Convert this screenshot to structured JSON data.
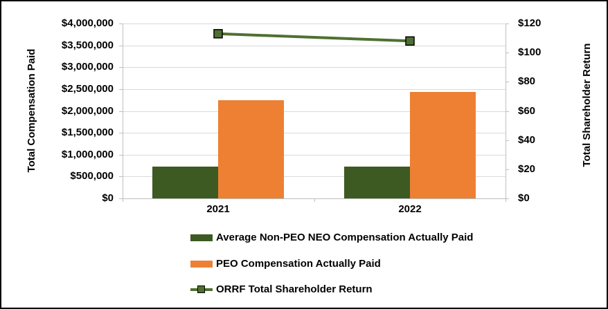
{
  "chart_data": {
    "type": "bar",
    "subtype": "combo-bar-line-dual-axis",
    "title": "",
    "categories": [
      "2021",
      "2022"
    ],
    "series": [
      {
        "name": "Average Non-PEO NEO Compensation Actually Paid",
        "type": "bar",
        "axis": "left",
        "color": "#3D5A23",
        "values": [
          730000,
          725000
        ]
      },
      {
        "name": "PEO Compensation Actually Paid",
        "type": "bar",
        "axis": "left",
        "color": "#ED8033",
        "values": [
          2240000,
          2440000
        ]
      },
      {
        "name": "ORRF Total Shareholder Return",
        "type": "line",
        "axis": "right",
        "color": "#4E7030",
        "marker": "square",
        "marker_border_color": "#000000",
        "values": [
          113,
          108
        ]
      }
    ],
    "left_axis": {
      "title": "Total Compensation Paid",
      "min": 0,
      "max": 4000000,
      "step": 500000,
      "tick_labels": [
        "$4,000,000",
        "$3,500,000",
        "$3,000,000",
        "$2,500,000",
        "$2,000,000",
        "$1,500,000",
        "$1,000,000",
        "$500,000",
        "$0"
      ]
    },
    "right_axis": {
      "title": "Total Shareholder Return",
      "min": 0,
      "max": 120,
      "step": 20,
      "tick_labels": [
        "$120",
        "$100",
        "$80",
        "$60",
        "$40",
        "$20",
        "$0"
      ]
    },
    "x_tick_labels": [
      "2021",
      "2022"
    ],
    "grid": true,
    "legend_position": "bottom"
  },
  "colors": {
    "bar_green": "#3D5A23",
    "bar_orange": "#ED8033",
    "line_green": "#4E7030",
    "gridline": "#D9D9D9",
    "axis_line": "#BFBFBF",
    "text": "#000000",
    "background": "#FFFFFF",
    "border": "#000000"
  }
}
